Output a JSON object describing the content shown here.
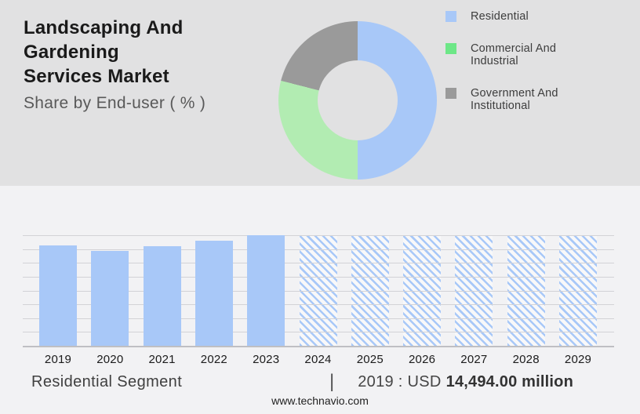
{
  "page": {
    "background_top": "#e1e1e2",
    "background_bottom": "#f2f2f4",
    "accent_blue": "#a8c8f8"
  },
  "header": {
    "title_line1": "Landscaping And Gardening",
    "title_line2": "Services Market",
    "subtitle": "Share by End-user ( % )"
  },
  "legend": {
    "items": [
      {
        "label": "Residential",
        "color": "#a8c8f8"
      },
      {
        "label": "Commercial And Industrial",
        "color": "#6de787"
      },
      {
        "label": "Government And Institutional",
        "color": "#9a9a9a"
      }
    ]
  },
  "chart_data": [
    {
      "type": "pie",
      "donut": true,
      "title": "Share by End-user ( % )",
      "labels": [
        "Residential",
        "Commercial And Industrial",
        "Government And Institutional"
      ],
      "values": [
        50,
        29,
        21
      ],
      "colors": [
        "#a8c8f8",
        "#b2ecb2",
        "#9a9a9a"
      ],
      "legend_position": "right",
      "data_labels_shown": false,
      "start_angle_deg": 0,
      "direction": "clockwise"
    },
    {
      "type": "bar",
      "categories": [
        "2019",
        "2020",
        "2021",
        "2022",
        "2023",
        "2024",
        "2025",
        "2026",
        "2027",
        "2028",
        "2029"
      ],
      "values_pct_of_max": [
        91,
        86,
        90,
        95,
        100,
        100,
        100,
        100,
        100,
        100,
        100
      ],
      "bar_styles": [
        "solid",
        "solid",
        "solid",
        "solid",
        "solid",
        "hatched",
        "hatched",
        "hatched",
        "hatched",
        "hatched",
        "hatched"
      ],
      "hatched_meaning": "forecast",
      "known_values": {
        "2019": "USD 14,494.00 million"
      },
      "bar_color": "#a8c8f8",
      "xlabel": "",
      "ylabel": "",
      "value_axis_labels_shown": false,
      "gridlines_count": 9,
      "grid_on": true
    }
  ],
  "bottom": {
    "segment_label": "Residential Segment",
    "separator": "|",
    "value_prefix": "2019 : USD",
    "value_bold": "14,494.00 million"
  },
  "footer": {
    "website": "www.technavio.com"
  }
}
